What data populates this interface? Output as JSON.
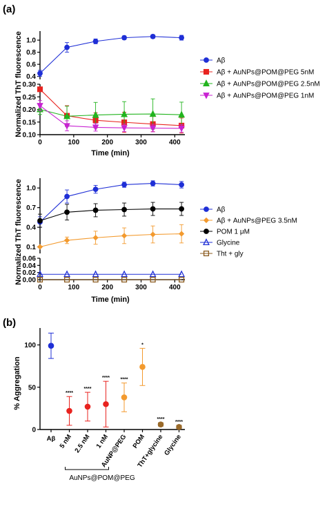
{
  "panels": {
    "a": "(a)",
    "b": "(b)"
  },
  "chart_data": [
    {
      "type": "line",
      "panel": "a-top",
      "xlabel": "Time (min)",
      "ylabel": "Normalized ThT fluorescence",
      "xlim": [
        0,
        430
      ],
      "x_ticks": [
        0,
        100,
        200,
        300,
        400
      ],
      "split_axis": true,
      "upper_ylim": [
        0.35,
        1.15
      ],
      "upper_y_ticks": [
        0.4,
        0.6,
        0.8,
        1.0
      ],
      "lower_ylim": [
        0.1,
        0.3
      ],
      "lower_y_ticks": [
        0.1,
        0.15,
        0.2,
        0.25,
        0.3
      ],
      "legend_position": "right",
      "series": [
        {
          "name": "Aβ",
          "color": "#1f2fd6",
          "marker": "circle-filled",
          "segment": "upper",
          "x": [
            0,
            80,
            165,
            250,
            335,
            420
          ],
          "y": [
            0.45,
            0.88,
            0.98,
            1.04,
            1.06,
            1.04
          ],
          "err": [
            0.05,
            0.08,
            0.04,
            0.03,
            0.03,
            0.04
          ]
        },
        {
          "name": "Aβ + AuNPs@POM@PEG 5nM",
          "color": "#e8231f",
          "marker": "square-filled",
          "segment": "lower",
          "x": [
            0,
            80,
            165,
            250,
            335,
            420
          ],
          "y": [
            0.28,
            0.175,
            0.157,
            0.149,
            0.142,
            0.136
          ],
          "err": [
            0.008,
            0.04,
            0.03,
            0.04,
            0.03,
            0.03
          ]
        },
        {
          "name": "Aβ + AuNPs@POM@PEG 2.5nM",
          "color": "#22b41e",
          "marker": "triangle-up-filled",
          "segment": "lower",
          "x": [
            0,
            80,
            165,
            250,
            335,
            420
          ],
          "y": [
            0.2,
            0.173,
            0.178,
            0.181,
            0.182,
            0.179
          ],
          "err": [
            0.02,
            0.04,
            0.05,
            0.05,
            0.06,
            0.05
          ]
        },
        {
          "name": "Aβ + AuNPs@POM@PEG 1nM",
          "color": "#c823d2",
          "marker": "triangle-down-filled",
          "segment": "lower",
          "x": [
            0,
            80,
            165,
            250,
            335,
            420
          ],
          "y": [
            0.215,
            0.135,
            0.129,
            0.127,
            0.126,
            0.125
          ],
          "err": [
            0.02,
            0.02,
            0.015,
            0.015,
            0.015,
            0.015
          ]
        }
      ]
    },
    {
      "type": "line",
      "panel": "a-bottom",
      "xlabel": "Time (min)",
      "ylabel": "Normalized ThT fluorescence",
      "xlim": [
        0,
        430
      ],
      "x_ticks": [
        0,
        100,
        200,
        300,
        400
      ],
      "split_axis": true,
      "upper_ylim": [
        0.0,
        1.15
      ],
      "upper_y_ticks": [
        0.1,
        0.4,
        0.7,
        1.0
      ],
      "lower_ylim": [
        0.0,
        0.06
      ],
      "lower_y_ticks": [
        0.0,
        0.02,
        0.04,
        0.06
      ],
      "legend_position": "right",
      "series": [
        {
          "name": "Aβ",
          "color": "#1f2fd6",
          "marker": "circle-filled",
          "segment": "upper",
          "x": [
            0,
            80,
            165,
            250,
            335,
            420
          ],
          "y": [
            0.48,
            0.87,
            0.98,
            1.05,
            1.07,
            1.05
          ],
          "err": [
            0.08,
            0.1,
            0.06,
            0.04,
            0.04,
            0.05
          ]
        },
        {
          "name": "Aβ + AuNPs@PEG 3.5nM",
          "color": "#f39a2e",
          "marker": "diamond-filled",
          "segment": "upper",
          "x": [
            0,
            80,
            165,
            250,
            335,
            420
          ],
          "y": [
            0.1,
            0.2,
            0.24,
            0.27,
            0.29,
            0.3
          ],
          "err": [
            0.01,
            0.05,
            0.1,
            0.12,
            0.13,
            0.14
          ]
        },
        {
          "name": "POM 1 μM",
          "color": "#000000",
          "marker": "circle-filled",
          "segment": "upper",
          "x": [
            0,
            80,
            165,
            250,
            335,
            420
          ],
          "y": [
            0.5,
            0.63,
            0.66,
            0.67,
            0.68,
            0.68
          ],
          "err": [
            0.1,
            0.12,
            0.1,
            0.1,
            0.1,
            0.1
          ]
        },
        {
          "name": "Glycine",
          "color": "#1f2fd6",
          "marker": "triangle-up-open",
          "segment": "lower",
          "x": [
            0,
            80,
            165,
            250,
            335,
            420
          ],
          "y": [
            0.015,
            0.015,
            0.015,
            0.015,
            0.015,
            0.015
          ],
          "err": [
            0,
            0,
            0,
            0,
            0,
            0
          ]
        },
        {
          "name": "Tht + gly",
          "color": "#8a5a1e",
          "marker": "square-open",
          "segment": "lower",
          "x": [
            0,
            80,
            165,
            250,
            335,
            420
          ],
          "y": [
            0.0,
            0.0,
            0.0,
            0.0,
            0.0,
            0.0
          ],
          "err": [
            0,
            0,
            0,
            0,
            0,
            0
          ]
        }
      ]
    },
    {
      "type": "scatter",
      "panel": "b",
      "ylabel": "% Aggregation",
      "ylim": [
        0,
        120
      ],
      "y_ticks": [
        0,
        50,
        100
      ],
      "group_label": "AuNPs@POM@PEG",
      "group_members": [
        "5 nM",
        "2.5 nM",
        "1 nM"
      ],
      "categories": [
        "Aβ",
        "5 nM",
        "2.5 nM",
        "1 nM",
        "AuNP@PEG",
        "POM",
        "ThT+glycine",
        "Glycine"
      ],
      "values": [
        99,
        22,
        27,
        30,
        38,
        74,
        6,
        3
      ],
      "errors": [
        15,
        17,
        17,
        27,
        17,
        22,
        2,
        2
      ],
      "significance": [
        "",
        "****",
        "****",
        "****",
        "****",
        "*",
        "****",
        "****"
      ],
      "colors": [
        "#1f2fd6",
        "#e8231f",
        "#e8231f",
        "#e8231f",
        "#f39a2e",
        "#f39a2e",
        "#9a6a2a",
        "#9a6a2a"
      ]
    }
  ]
}
